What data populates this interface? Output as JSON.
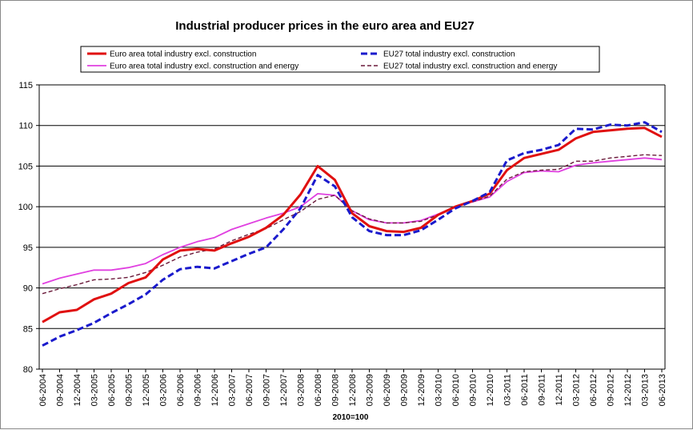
{
  "chart_data": {
    "type": "line",
    "title": "Industrial producer prices in the euro area and EU27",
    "xlabel": "2010=100",
    "ylabel": "",
    "ylim": [
      80,
      115
    ],
    "yticks": [
      80,
      85,
      90,
      95,
      100,
      105,
      110,
      115
    ],
    "grid": true,
    "legend_position": "top",
    "x_tick_labels": [
      "06-2004",
      "09-2004",
      "12-2004",
      "03-2005",
      "06-2005",
      "09-2005",
      "12-2005",
      "03-2006",
      "06-2006",
      "09-2006",
      "12-2006",
      "03-2007",
      "06-2007",
      "09-2007",
      "12-2007",
      "03-2008",
      "06-2008",
      "09-2008",
      "12-2008",
      "03-2009",
      "06-2009",
      "09-2009",
      "12-2009",
      "03-2010",
      "06-2010",
      "09-2010",
      "12-2010",
      "03-2011",
      "06-2011",
      "09-2011",
      "12-2011",
      "03-2012",
      "06-2012",
      "09-2012",
      "12-2012",
      "03-2013",
      "06-2013"
    ],
    "series": [
      {
        "name": "Euro area total industry excl. construction",
        "color": "#e01010",
        "style": "solid-thick",
        "values": [
          85.8,
          87.0,
          87.3,
          88.6,
          89.3,
          90.6,
          91.3,
          93.5,
          94.6,
          94.8,
          94.6,
          95.5,
          96.3,
          97.4,
          99.0,
          101.5,
          105.0,
          103.3,
          99.2,
          97.6,
          97.0,
          96.9,
          97.4,
          99.0,
          100.0,
          100.7,
          101.6,
          104.5,
          106.0,
          106.5,
          107.0,
          108.4,
          109.2,
          109.4,
          109.6,
          109.7,
          108.6
        ]
      },
      {
        "name": "EU27 total industry excl. construction",
        "color": "#1a1acc",
        "style": "dashed-thick",
        "values": [
          82.9,
          84.0,
          84.8,
          85.7,
          86.9,
          88.0,
          89.2,
          91.0,
          92.3,
          92.6,
          92.4,
          93.3,
          94.2,
          95.0,
          97.2,
          99.8,
          103.9,
          102.5,
          98.7,
          97.0,
          96.5,
          96.5,
          97.1,
          98.4,
          99.8,
          100.7,
          101.8,
          105.7,
          106.6,
          107.0,
          107.6,
          109.6,
          109.5,
          110.1,
          110.0,
          110.4,
          109.2
        ]
      },
      {
        "name": "Euro area total industry excl. construction and energy",
        "color": "#e040e0",
        "style": "solid",
        "values": [
          90.5,
          91.2,
          91.7,
          92.2,
          92.2,
          92.5,
          93.0,
          94.1,
          95.0,
          95.7,
          96.2,
          97.2,
          97.9,
          98.6,
          99.2,
          100.0,
          101.6,
          101.4,
          99.5,
          98.4,
          98.0,
          98.0,
          98.3,
          99.1,
          100.0,
          100.6,
          101.2,
          103.1,
          104.2,
          104.4,
          104.3,
          105.1,
          105.4,
          105.6,
          105.8,
          106.0,
          105.8
        ]
      },
      {
        "name": "EU27 total industry excl. construction and energy",
        "color": "#6a1a3a",
        "style": "dashed-thin",
        "values": [
          89.3,
          89.9,
          90.4,
          91.0,
          91.1,
          91.3,
          91.9,
          92.8,
          93.8,
          94.4,
          94.8,
          95.8,
          96.6,
          97.3,
          98.4,
          99.4,
          100.9,
          101.4,
          99.5,
          98.5,
          98.0,
          98.0,
          98.2,
          99.0,
          100.0,
          100.6,
          101.3,
          103.4,
          104.3,
          104.5,
          104.6,
          105.6,
          105.6,
          106.0,
          106.2,
          106.4,
          106.3
        ]
      }
    ]
  }
}
